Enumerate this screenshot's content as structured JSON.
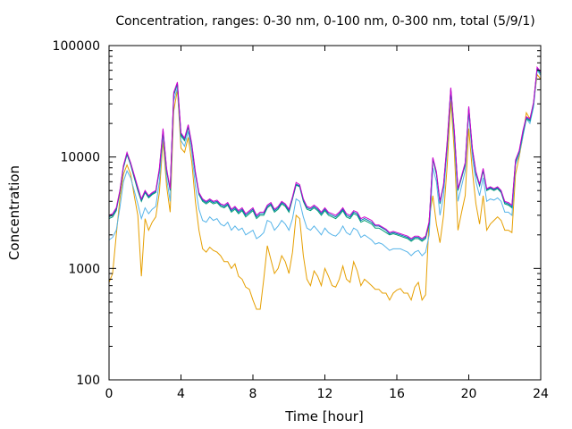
{
  "chart_data": {
    "type": "line",
    "title": "Concentration, ranges: 0-30 nm, 0-100 nm, 0-300 nm, total (5/9/1)",
    "xlabel": "Time [hour]",
    "ylabel": "Concentration",
    "xlim": [
      0,
      24
    ],
    "ylim": [
      100,
      100000
    ],
    "yscale": "log",
    "x_ticks": [
      0,
      4,
      8,
      12,
      16,
      20,
      24
    ],
    "x_tick_labels": [
      "0",
      "4",
      "8",
      "12",
      "16",
      "20",
      "24"
    ],
    "y_ticks": [
      100,
      1000,
      10000,
      100000
    ],
    "y_tick_labels": [
      "100",
      "1000",
      "10000",
      "100000"
    ],
    "grid": false,
    "legend": "none",
    "x": [
      0,
      0.2,
      0.4,
      0.6,
      0.8,
      1.0,
      1.2,
      1.4,
      1.6,
      1.8,
      2.0,
      2.2,
      2.4,
      2.6,
      2.8,
      3.0,
      3.2,
      3.4,
      3.6,
      3.8,
      4.0,
      4.2,
      4.4,
      4.6,
      4.8,
      5.0,
      5.2,
      5.4,
      5.6,
      5.8,
      6.0,
      6.2,
      6.4,
      6.6,
      6.8,
      7.0,
      7.2,
      7.4,
      7.6,
      7.8,
      8.0,
      8.2,
      8.4,
      8.6,
      8.8,
      9.0,
      9.2,
      9.4,
      9.6,
      9.8,
      10.0,
      10.2,
      10.4,
      10.6,
      10.8,
      11.0,
      11.2,
      11.4,
      11.6,
      11.8,
      12.0,
      12.2,
      12.4,
      12.6,
      12.8,
      13.0,
      13.2,
      13.4,
      13.6,
      13.8,
      14.0,
      14.2,
      14.4,
      14.6,
      14.8,
      15.0,
      15.2,
      15.4,
      15.6,
      15.8,
      16.0,
      16.2,
      16.4,
      16.6,
      16.8,
      17.0,
      17.2,
      17.4,
      17.6,
      17.8,
      18.0,
      18.2,
      18.4,
      18.6,
      18.8,
      19.0,
      19.2,
      19.4,
      19.6,
      19.8,
      20.0,
      20.2,
      20.4,
      20.6,
      20.8,
      21.0,
      21.2,
      21.4,
      21.6,
      21.8,
      22.0,
      22.2,
      22.4,
      22.6,
      22.8,
      23.0,
      23.2,
      23.4,
      23.6,
      23.8,
      24.0
    ],
    "series": [
      {
        "color": "#e69f00",
        "values": [
          750,
          900,
          2000,
          4200,
          7000,
          8500,
          7000,
          4500,
          3000,
          850,
          2800,
          2200,
          2600,
          2900,
          4800,
          14000,
          5500,
          3200,
          26000,
          40000,
          12000,
          11000,
          15000,
          9000,
          4000,
          2200,
          1500,
          1400,
          1550,
          1450,
          1400,
          1300,
          1150,
          1150,
          1000,
          1100,
          850,
          800,
          680,
          650,
          520,
          430,
          430,
          800,
          1600,
          1200,
          900,
          1000,
          1300,
          1150,
          900,
          1400,
          3000,
          2800,
          1300,
          800,
          700,
          950,
          850,
          700,
          1000,
          850,
          700,
          680,
          800,
          1050,
          800,
          750,
          1150,
          950,
          700,
          800,
          750,
          700,
          650,
          650,
          600,
          600,
          520,
          600,
          640,
          660,
          600,
          600,
          520,
          680,
          750,
          520,
          580,
          2800,
          4500,
          2500,
          1700,
          3000,
          8500,
          32000,
          11000,
          2200,
          3200,
          4500,
          18000,
          7500,
          3800,
          2500,
          4500,
          2200,
          2500,
          2700,
          2900,
          2700,
          2200,
          2200,
          2100,
          7000,
          10000,
          15000,
          25000,
          22000,
          30000,
          55000,
          50000
        ]
      },
      {
        "color": "#56b4e9",
        "values": [
          1800,
          1900,
          2200,
          3500,
          6000,
          7500,
          6500,
          5000,
          3800,
          2800,
          3500,
          3100,
          3400,
          3600,
          6000,
          16000,
          6500,
          4000,
          32000,
          42000,
          14000,
          12500,
          17000,
          11000,
          5500,
          3400,
          2700,
          2600,
          2900,
          2700,
          2800,
          2500,
          2400,
          2600,
          2200,
          2400,
          2200,
          2300,
          2000,
          2100,
          2200,
          1850,
          1950,
          2100,
          2700,
          2600,
          2200,
          2400,
          2700,
          2500,
          2200,
          2800,
          4200,
          4000,
          2900,
          2300,
          2200,
          2400,
          2200,
          2000,
          2300,
          2100,
          2000,
          1950,
          2100,
          2400,
          2100,
          2000,
          2300,
          2200,
          1900,
          2000,
          1900,
          1800,
          1650,
          1700,
          1650,
          1550,
          1450,
          1500,
          1500,
          1500,
          1450,
          1400,
          1300,
          1400,
          1450,
          1300,
          1400,
          2000,
          8000,
          6000,
          3000,
          4500,
          12000,
          38000,
          14000,
          4000,
          5500,
          7500,
          25000,
          10000,
          6000,
          4500,
          6500,
          4000,
          4200,
          4100,
          4300,
          4000,
          3200,
          3200,
          3000,
          8500,
          10500,
          15000,
          22000,
          20000,
          28000,
          60000,
          54000
        ]
      },
      {
        "color": "#009e73",
        "values": [
          2800,
          2900,
          3300,
          4800,
          8000,
          10500,
          8500,
          6500,
          5000,
          4000,
          4800,
          4300,
          4600,
          4800,
          7500,
          17000,
          7500,
          5000,
          36000,
          45000,
          15500,
          14000,
          18500,
          12500,
          7000,
          4600,
          4000,
          3800,
          4000,
          3800,
          3900,
          3600,
          3500,
          3700,
          3200,
          3400,
          3100,
          3300,
          2900,
          3100,
          3300,
          2800,
          3000,
          3000,
          3500,
          3700,
          3200,
          3400,
          3800,
          3600,
          3200,
          4200,
          5600,
          5400,
          4000,
          3400,
          3300,
          3500,
          3300,
          3000,
          3300,
          3000,
          2900,
          2800,
          3000,
          3300,
          2900,
          2800,
          3100,
          3000,
          2600,
          2700,
          2600,
          2500,
          2300,
          2300,
          2200,
          2100,
          2000,
          2050,
          2000,
          1950,
          1900,
          1850,
          1750,
          1850,
          1850,
          1750,
          1850,
          2500,
          9500,
          7000,
          3800,
          5500,
          13000,
          40000,
          16000,
          5000,
          6500,
          8500,
          27000,
          11500,
          7000,
          5500,
          7500,
          5000,
          5200,
          5000,
          5200,
          4800,
          3800,
          3700,
          3500,
          9000,
          11000,
          16000,
          22000,
          21000,
          30000,
          62000,
          56000
        ]
      },
      {
        "color": "#0072b2",
        "values": [
          2900,
          3000,
          3400,
          4900,
          8200,
          10800,
          8700,
          6700,
          5200,
          4100,
          4900,
          4400,
          4700,
          4900,
          7700,
          17500,
          7700,
          5100,
          37000,
          46000,
          16000,
          14400,
          19000,
          12800,
          7200,
          4700,
          4100,
          3900,
          4100,
          3900,
          4000,
          3700,
          3600,
          3800,
          3300,
          3500,
          3200,
          3400,
          3000,
          3200,
          3400,
          2900,
          3100,
          3100,
          3600,
          3800,
          3300,
          3500,
          3900,
          3700,
          3300,
          4300,
          5700,
          5500,
          4100,
          3500,
          3400,
          3600,
          3400,
          3100,
          3400,
          3100,
          3000,
          2900,
          3100,
          3400,
          3000,
          2900,
          3200,
          3100,
          2700,
          2800,
          2700,
          2600,
          2400,
          2400,
          2300,
          2200,
          2050,
          2100,
          2050,
          2000,
          1950,
          1900,
          1800,
          1900,
          1900,
          1800,
          1900,
          2600,
          9700,
          7200,
          3900,
          5600,
          13500,
          41000,
          16500,
          5100,
          6700,
          8700,
          28000,
          11800,
          7200,
          5600,
          7700,
          5100,
          5300,
          5100,
          5300,
          4900,
          3900,
          3800,
          3600,
          9200,
          11200,
          16500,
          22500,
          21500,
          30500,
          63000,
          57000
        ]
      },
      {
        "color": "#cc00cc",
        "values": [
          3000,
          3100,
          3500,
          5000,
          8400,
          11000,
          8900,
          6900,
          5350,
          4200,
          5000,
          4500,
          4800,
          5000,
          7900,
          18000,
          7900,
          5200,
          38000,
          47000,
          16500,
          14800,
          19500,
          13100,
          7400,
          4800,
          4200,
          4000,
          4200,
          4000,
          4100,
          3800,
          3700,
          3900,
          3400,
          3600,
          3300,
          3500,
          3100,
          3300,
          3500,
          3000,
          3200,
          3200,
          3700,
          3900,
          3400,
          3600,
          4000,
          3800,
          3400,
          4400,
          5900,
          5650,
          4200,
          3600,
          3500,
          3700,
          3500,
          3200,
          3500,
          3200,
          3100,
          3000,
          3200,
          3500,
          3100,
          3000,
          3300,
          3200,
          2800,
          2900,
          2800,
          2700,
          2450,
          2450,
          2350,
          2250,
          2100,
          2150,
          2100,
          2050,
          2000,
          1950,
          1850,
          1950,
          1950,
          1850,
          1950,
          2650,
          9900,
          7400,
          4000,
          5700,
          14000,
          42000,
          17000,
          5200,
          6800,
          8900,
          28500,
          12000,
          7400,
          5700,
          7900,
          5200,
          5400,
          5200,
          5400,
          5000,
          4000,
          3900,
          3700,
          9400,
          11400,
          17000,
          23000,
          22000,
          31000,
          64000,
          58000
        ]
      }
    ]
  }
}
